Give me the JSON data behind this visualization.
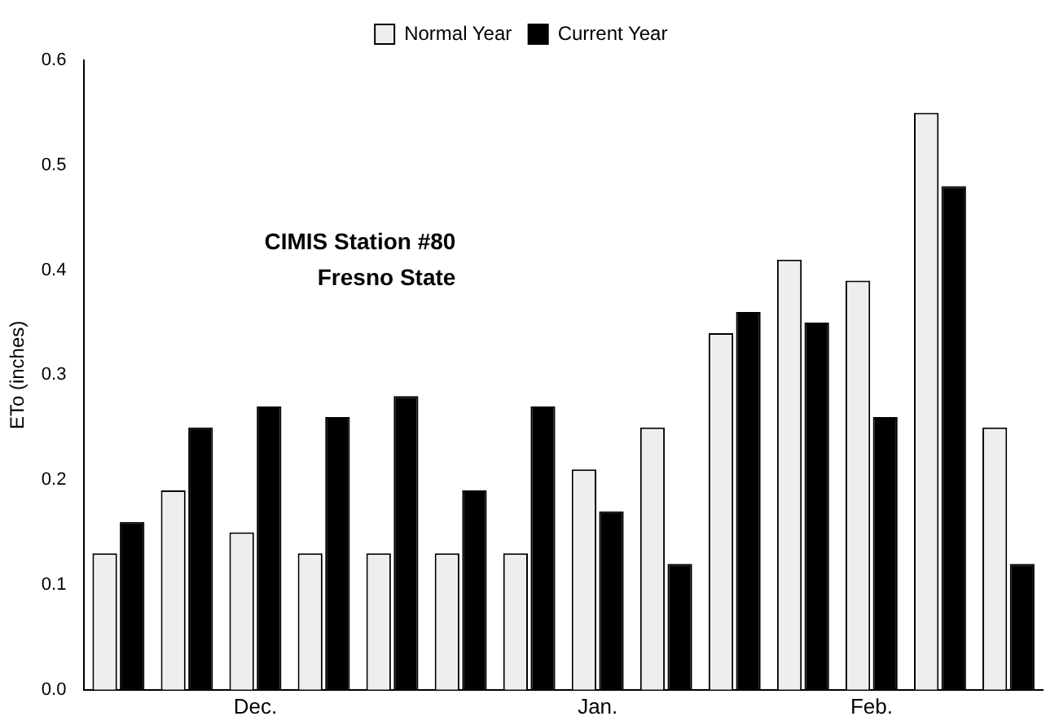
{
  "chart_data": {
    "type": "bar",
    "ylabel": "ETo (inches)",
    "categories": [
      null,
      null,
      "Dec.",
      null,
      null,
      null,
      null,
      "Jan.",
      null,
      null,
      null,
      "Feb.",
      null,
      null
    ],
    "series": [
      {
        "name": "Normal Year",
        "color": "#eeeeee",
        "values": [
          0.13,
          0.19,
          0.15,
          0.13,
          0.13,
          0.13,
          0.13,
          0.21,
          0.25,
          0.34,
          0.41,
          0.39,
          0.55,
          0.25
        ]
      },
      {
        "name": "Current Year",
        "color": "#000000",
        "values": [
          0.16,
          0.25,
          0.27,
          0.26,
          0.28,
          0.19,
          0.27,
          0.17,
          0.12,
          0.36,
          0.35,
          0.26,
          0.48,
          0.12
        ]
      }
    ],
    "ylim": [
      0,
      0.6
    ],
    "yticks": [
      {
        "value": 0,
        "label": "0.0"
      },
      0.1,
      0.2,
      0.3,
      0.4,
      0.5,
      0.6
    ],
    "legend": "top",
    "grid": false,
    "annotations": [
      "CIMIS Station #80",
      "Fresno State"
    ]
  }
}
